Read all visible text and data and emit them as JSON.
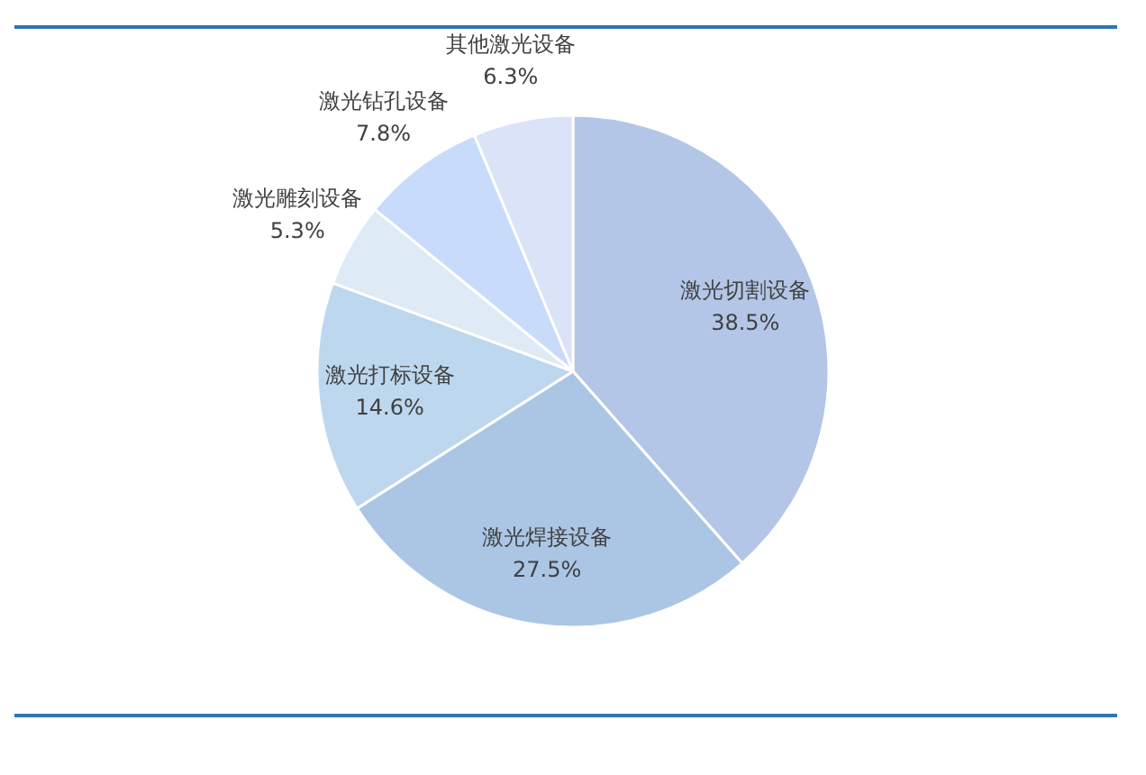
{
  "chart_data": {
    "type": "pie",
    "categories": [
      "激光切割设备",
      "激光焊接设备",
      "激光打标设备",
      "激光雕刻设备",
      "激光钻孔设备",
      "其他激光设备"
    ],
    "values": [
      38.5,
      27.5,
      14.6,
      5.3,
      7.8,
      6.3
    ],
    "colors": [
      "#b4c6e7",
      "#abc6e4",
      "#bdd7ee",
      "#deeaf6",
      "#c8dbfa",
      "#dae3f7"
    ],
    "value_labels": [
      "38.5%",
      "27.5%",
      "14.6%",
      "5.3%",
      "7.8%",
      "6.3%"
    ]
  }
}
